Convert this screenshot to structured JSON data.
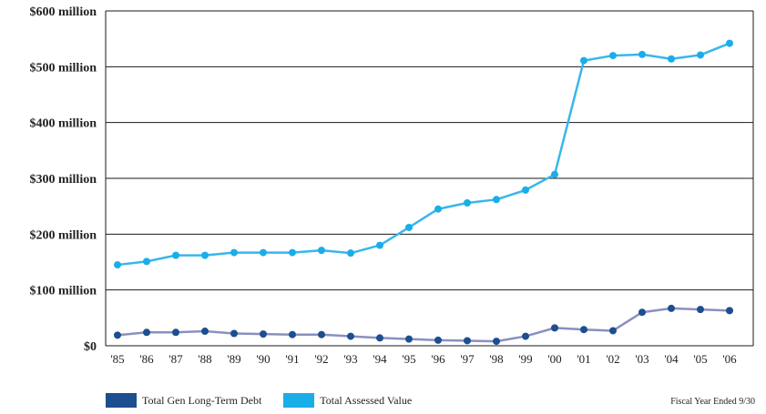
{
  "chart_data": {
    "type": "line",
    "title": "",
    "xlabel": "",
    "ylabel": "",
    "categories": [
      "'85",
      "'86",
      "'87",
      "'88",
      "'89",
      "'90",
      "'91",
      "'92",
      "'93",
      "'94",
      "'95",
      "'96",
      "'97",
      "'98",
      "'99",
      "'00",
      "'01",
      "'02",
      "'03",
      "'04",
      "'05",
      "'06"
    ],
    "ylim": [
      0,
      600
    ],
    "yticks": [
      0,
      100,
      200,
      300,
      400,
      500,
      600
    ],
    "ytick_labels": [
      "$0",
      "$100 million",
      "$200 million",
      "$300 million",
      "$400 million",
      "$500 million",
      "$600 million"
    ],
    "grid": true,
    "legend_position": "bottom-left",
    "series": [
      {
        "name": "Total Gen Long-Term Debt",
        "line_color": "#8a8fbf",
        "marker_color": "#1b4f8f",
        "values": [
          19,
          24,
          24,
          26,
          22,
          21,
          20,
          20,
          17,
          14,
          12,
          10,
          9,
          8,
          17,
          32,
          29,
          27,
          60,
          67,
          65,
          63
        ]
      },
      {
        "name": "Total Assessed Value",
        "line_color": "#38b6ec",
        "marker_color": "#1aaee8",
        "values": [
          145,
          151,
          162,
          162,
          167,
          167,
          167,
          171,
          166,
          180,
          212,
          245,
          256,
          262,
          279,
          307,
          511,
          520,
          522,
          514,
          521,
          542
        ]
      }
    ]
  },
  "legend": {
    "items": [
      {
        "label": "Total Gen Long-Term Debt",
        "color": "#1b4f8f"
      },
      {
        "label": "Total Assessed Value",
        "color": "#1aaee8"
      }
    ]
  },
  "footnote": "Fiscal Year Ended 9/30"
}
